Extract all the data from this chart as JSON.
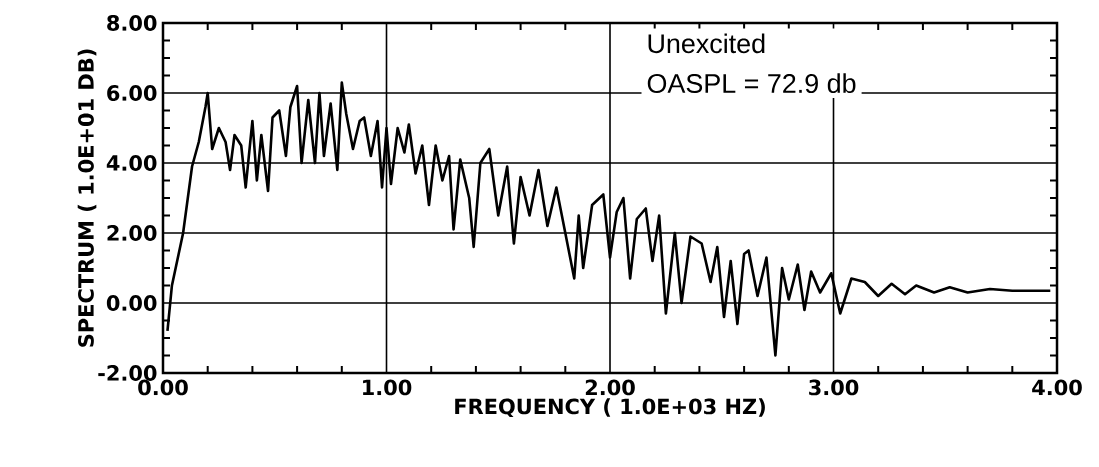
{
  "chart_data": {
    "type": "line",
    "xlabel": "FREQUENCY ( 1.0E+03 HZ)",
    "ylabel": "SPECTRUM ( 1.0E+01 DB)",
    "annotations": [
      "Unexcited",
      "OASPL = 72.9 db"
    ],
    "xlim": [
      0,
      4
    ],
    "ylim": [
      -2,
      8
    ],
    "xticks": [
      {
        "value": 0,
        "label": "0.00"
      },
      {
        "value": 1,
        "label": "1.00"
      },
      {
        "value": 2,
        "label": "2.00"
      },
      {
        "value": 3,
        "label": "3.00"
      },
      {
        "value": 4,
        "label": "4.00"
      }
    ],
    "yticks": [
      {
        "value": -2,
        "label": "-2.00"
      },
      {
        "value": 0,
        "label": "0.00"
      },
      {
        "value": 2,
        "label": "2.00"
      },
      {
        "value": 4,
        "label": "4.00"
      },
      {
        "value": 6,
        "label": "6.00"
      },
      {
        "value": 8,
        "label": "8.00"
      }
    ],
    "grid": true,
    "marker": "none",
    "line_style": "solid",
    "series": [
      {
        "color": "#000000",
        "x": [
          0.02,
          0.04,
          0.09,
          0.13,
          0.16,
          0.19,
          0.2,
          0.22,
          0.25,
          0.28,
          0.3,
          0.32,
          0.35,
          0.37,
          0.4,
          0.42,
          0.44,
          0.47,
          0.49,
          0.52,
          0.55,
          0.57,
          0.6,
          0.62,
          0.65,
          0.68,
          0.7,
          0.72,
          0.75,
          0.78,
          0.8,
          0.82,
          0.85,
          0.88,
          0.9,
          0.93,
          0.96,
          0.98,
          1.0,
          1.02,
          1.05,
          1.08,
          1.1,
          1.13,
          1.16,
          1.19,
          1.22,
          1.25,
          1.28,
          1.3,
          1.33,
          1.37,
          1.39,
          1.42,
          1.46,
          1.5,
          1.54,
          1.57,
          1.6,
          1.64,
          1.68,
          1.72,
          1.76,
          1.8,
          1.84,
          1.86,
          1.88,
          1.92,
          1.97,
          2.0,
          2.03,
          2.06,
          2.09,
          2.12,
          2.16,
          2.19,
          2.22,
          2.25,
          2.29,
          2.32,
          2.36,
          2.41,
          2.45,
          2.48,
          2.51,
          2.54,
          2.57,
          2.6,
          2.62,
          2.66,
          2.7,
          2.74,
          2.77,
          2.8,
          2.84,
          2.87,
          2.9,
          2.94,
          2.99,
          3.03,
          3.08,
          3.14,
          3.2,
          3.26,
          3.32,
          3.37,
          3.45,
          3.52,
          3.6,
          3.7,
          3.8,
          3.9,
          3.97
        ],
        "values": [
          -0.8,
          0.5,
          2.0,
          3.9,
          4.6,
          5.6,
          6.0,
          4.4,
          5.0,
          4.6,
          3.8,
          4.8,
          4.5,
          3.3,
          5.2,
          3.5,
          4.8,
          3.2,
          5.3,
          5.5,
          4.2,
          5.6,
          6.2,
          4.0,
          5.8,
          4.0,
          6.0,
          4.2,
          5.7,
          3.8,
          6.3,
          5.4,
          4.4,
          5.2,
          5.3,
          4.2,
          5.2,
          3.3,
          5.0,
          3.4,
          5.0,
          4.3,
          5.1,
          3.7,
          4.5,
          2.8,
          4.5,
          3.5,
          4.2,
          2.1,
          4.1,
          3.0,
          1.6,
          4.0,
          4.4,
          2.5,
          3.9,
          1.7,
          3.6,
          2.5,
          3.8,
          2.2,
          3.3,
          2.0,
          0.7,
          2.5,
          1.0,
          2.8,
          3.1,
          1.3,
          2.6,
          3.0,
          0.7,
          2.4,
          2.7,
          1.2,
          2.5,
          -0.3,
          2.0,
          0.0,
          1.9,
          1.7,
          0.6,
          1.6,
          -0.4,
          1.2,
          -0.6,
          1.4,
          1.5,
          0.2,
          1.3,
          -1.5,
          1.0,
          0.1,
          1.1,
          -0.2,
          0.9,
          0.3,
          0.85,
          -0.3,
          0.7,
          0.6,
          0.2,
          0.55,
          0.25,
          0.5,
          0.3,
          0.45,
          0.3,
          0.4,
          0.35,
          0.35,
          0.35
        ]
      }
    ]
  }
}
